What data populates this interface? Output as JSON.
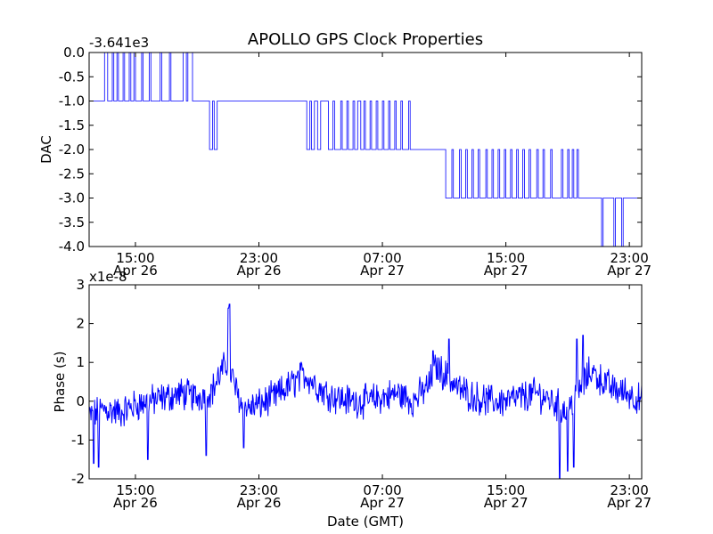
{
  "chart_data": {
    "title": "APOLLO GPS Clock Properties",
    "xlabel": "Date (GMT)",
    "xtick_times": [
      "15:00",
      "23:00",
      "07:00",
      "15:00",
      "23:00"
    ],
    "xtick_dates": [
      "Apr 26",
      "Apr 26",
      "Apr 27",
      "Apr 27",
      "Apr 27"
    ],
    "xtick_hours": [
      15,
      23,
      31,
      39,
      47
    ],
    "xlim_hours": [
      12.0,
      47.8
    ],
    "line_color": "#0000ff",
    "subplots": [
      {
        "type": "line",
        "ylabel": "DAC",
        "offset_label": "-3.641e3",
        "ylim": [
          -4.0,
          0.0
        ],
        "yticks": [
          0.0,
          -0.5,
          -1.0,
          -1.5,
          -2.0,
          -2.5,
          -3.0,
          -3.5,
          -4.0
        ],
        "ytick_labels": [
          "0.0",
          "-0.5",
          "-1.0",
          "-1.5",
          "-2.0",
          "-2.5",
          "-3.0",
          "-3.5",
          "-4.0"
        ],
        "series": [
          {
            "name": "DAC",
            "x_hours": [
              12.0,
              12.9,
              13.0,
              13.2,
              13.5,
              13.6,
              13.8,
              13.9,
              14.2,
              14.3,
              14.6,
              14.7,
              14.9,
              15.0,
              15.4,
              15.5,
              15.9,
              16.0,
              16.6,
              16.7,
              17.2,
              17.3,
              18.0,
              18.1,
              18.3,
              18.4,
              18.7,
              19.5,
              19.8,
              20.0,
              20.1,
              20.3,
              20.4,
              21.0,
              23.0,
              26.0,
              26.1,
              26.3,
              26.4,
              26.6,
              26.8,
              27.0,
              27.1,
              27.4,
              27.5,
              27.8,
              27.9,
              28.3,
              28.4,
              28.7,
              28.8,
              29.1,
              29.2,
              29.4,
              29.6,
              29.8,
              29.9,
              30.2,
              30.3,
              30.6,
              30.7,
              31.0,
              31.1,
              31.4,
              31.5,
              31.8,
              31.9,
              32.2,
              32.3,
              32.7,
              32.8,
              33.3,
              34.0,
              35.0,
              35.1,
              35.5,
              35.6,
              36.0,
              36.1,
              36.4,
              36.5,
              36.8,
              36.9,
              37.2,
              37.3,
              37.7,
              37.8,
              38.1,
              38.2,
              38.5,
              38.6,
              38.9,
              39.0,
              39.3,
              39.4,
              39.7,
              39.8,
              40.1,
              40.2,
              40.5,
              40.6,
              41.0,
              41.1,
              41.4,
              41.5,
              41.9,
              42.0,
              42.6,
              42.7,
              43.0,
              43.1,
              43.3,
              43.4,
              43.6,
              43.7,
              44.5,
              45.0,
              45.2,
              45.3,
              46.0,
              46.1,
              46.5,
              46.6,
              47.8
            ],
            "values": [
              -1,
              -1,
              0,
              -1,
              0,
              -1,
              0,
              -1,
              0,
              -1,
              0,
              -1,
              0,
              -1,
              0,
              -1,
              0,
              -1,
              0,
              -1,
              0,
              -1,
              -1,
              0,
              -1,
              0,
              -1,
              -1,
              -2,
              -1,
              -2,
              -1,
              -1,
              -1,
              -1,
              -1,
              -2,
              -1,
              -2,
              -1,
              -2,
              -1,
              -1,
              -1,
              -2,
              -1,
              -2,
              -1,
              -2,
              -1,
              -2,
              -1,
              -2,
              -1,
              -2,
              -1,
              -2,
              -1,
              -2,
              -1,
              -2,
              -1,
              -2,
              -1,
              -2,
              -1,
              -2,
              -1,
              -2,
              -1,
              -2,
              -2,
              -2,
              -2,
              -3,
              -2,
              -3,
              -2,
              -3,
              -2,
              -3,
              -2,
              -3,
              -2,
              -3,
              -2,
              -3,
              -2,
              -3,
              -2,
              -3,
              -2,
              -3,
              -2,
              -3,
              -2,
              -3,
              -2,
              -3,
              -2,
              -3,
              -2,
              -3,
              -2,
              -3,
              -2,
              -3,
              -2,
              -3,
              -2,
              -3,
              -2,
              -3,
              -2,
              -3,
              -3,
              -3,
              -4,
              -3,
              -4,
              -3,
              -4,
              -3,
              -3
            ]
          }
        ]
      },
      {
        "type": "line",
        "ylabel": "Phase (s)",
        "offset_label": "x1e-8",
        "ylim": [
          -2,
          3
        ],
        "yticks": [
          3,
          2,
          1,
          0,
          -1,
          -2
        ],
        "ytick_labels": [
          "3",
          "2",
          "1",
          "0",
          "-1",
          "-2"
        ],
        "series": [
          {
            "name": "Phase",
            "trend_hours": [
              12.0,
              13.0,
              14.0,
              15.0,
              16.0,
              17.0,
              18.0,
              19.0,
              20.0,
              20.5,
              21.0,
              21.5,
              22.0,
              23.0,
              24.0,
              25.0,
              26.0,
              27.0,
              28.0,
              29.0,
              30.0,
              31.0,
              32.0,
              33.0,
              34.0,
              34.5,
              35.0,
              36.0,
              37.0,
              38.0,
              39.0,
              40.0,
              41.0,
              42.0,
              43.0,
              43.5,
              44.0,
              44.5,
              45.0,
              46.0,
              47.0,
              47.8
            ],
            "trend_values": [
              -0.4,
              -0.2,
              -0.3,
              -0.1,
              0.0,
              0.1,
              0.2,
              0.1,
              0.3,
              0.7,
              1.0,
              0.3,
              -0.2,
              -0.1,
              0.1,
              0.4,
              0.7,
              0.3,
              0.1,
              0.0,
              0.0,
              0.1,
              0.2,
              0.0,
              0.4,
              0.9,
              0.7,
              0.3,
              0.1,
              0.0,
              0.0,
              0.1,
              0.2,
              0.0,
              -0.3,
              0.2,
              0.4,
              0.8,
              0.6,
              0.3,
              0.2,
              0.0
            ],
            "noise_amplitude": 0.35,
            "samples": 900,
            "spikes": [
              {
                "x_hours": 12.3,
                "value": -1.6
              },
              {
                "x_hours": 12.6,
                "value": -1.7
              },
              {
                "x_hours": 15.8,
                "value": -1.5
              },
              {
                "x_hours": 19.6,
                "value": -1.4
              },
              {
                "x_hours": 21.0,
                "value": 2.4
              },
              {
                "x_hours": 21.1,
                "value": 2.5
              },
              {
                "x_hours": 22.0,
                "value": -1.2
              },
              {
                "x_hours": 34.3,
                "value": 1.3
              },
              {
                "x_hours": 35.3,
                "value": 1.6
              },
              {
                "x_hours": 42.5,
                "value": -2.0
              },
              {
                "x_hours": 43.0,
                "value": -1.8
              },
              {
                "x_hours": 43.4,
                "value": -1.7
              },
              {
                "x_hours": 43.6,
                "value": 1.6
              },
              {
                "x_hours": 44.0,
                "value": 1.7
              }
            ]
          }
        ]
      }
    ]
  }
}
